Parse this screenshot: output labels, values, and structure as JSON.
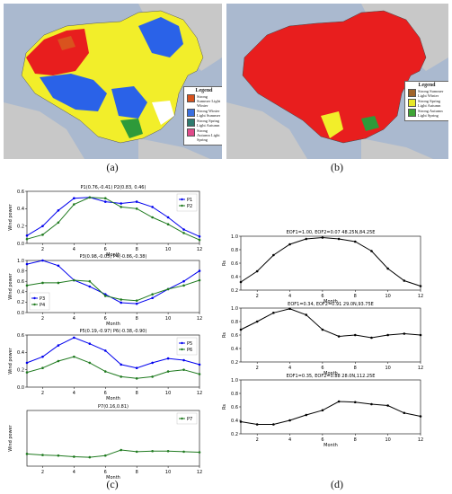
{
  "panels": {
    "a": {
      "label": "(a)"
    },
    "b": {
      "label": "(b)"
    },
    "c": {
      "label": "(c)"
    },
    "d": {
      "label": "(d)"
    }
  },
  "legend_a": {
    "title": "Legend",
    "items": [
      {
        "color": "#d9531e",
        "text": "Strong Summer Light Winter"
      },
      {
        "color": "#3a6fe0",
        "text": "Strong Winter Light Summer"
      },
      {
        "color": "#2e7b6e",
        "text": "Strong Spring Light Autumn"
      },
      {
        "color": "#e04a8a",
        "text": "Strong Autumn Light Spring"
      }
    ]
  },
  "legend_b": {
    "title": "Legend",
    "items": [
      {
        "color": "#a0642a",
        "text": "Strong Summer Light Winter"
      },
      {
        "color": "#e8e82a",
        "text": "Strong Spring Light Autumn"
      },
      {
        "color": "#3fa535",
        "text": "Strong Autumn Light Spring"
      }
    ]
  },
  "colors": {
    "map_bg": "#aab9cf",
    "china_red": "#e81e1e",
    "yellow": "#f2ee2a",
    "blue": "#2a62e8",
    "green": "#2e9a3a"
  },
  "chart_data": [
    {
      "type": "line",
      "panel": "c",
      "title": "P1(0.76,-0.41) P2(0.83, 0.46)",
      "xlabel": "Month",
      "ylabel": "Wind power",
      "xlim": [
        1,
        12
      ],
      "ylim": [
        0,
        0.6
      ],
      "xticks": [
        2,
        4,
        6,
        8,
        10,
        12
      ],
      "yticks": [
        0.0,
        0.2,
        0.4,
        0.6
      ],
      "ytick_labels": [
        "0.0",
        "0.2",
        "0.4",
        "0.6"
      ],
      "legend": "top-right",
      "x": [
        1,
        2,
        3,
        4,
        5,
        6,
        7,
        8,
        9,
        10,
        11,
        12
      ],
      "series": [
        {
          "name": "P1",
          "color": "#0000ee",
          "values": [
            0.09,
            0.2,
            0.38,
            0.52,
            0.53,
            0.48,
            0.46,
            0.48,
            0.42,
            0.3,
            0.16,
            0.08
          ]
        },
        {
          "name": "P2",
          "color": "#1f7a1f",
          "values": [
            0.05,
            0.1,
            0.24,
            0.45,
            0.53,
            0.52,
            0.42,
            0.4,
            0.3,
            0.22,
            0.12,
            0.04
          ]
        }
      ]
    },
    {
      "type": "line",
      "panel": "c",
      "title": "P3(0.98,-0.05) P4(-0.86,-0.38)",
      "xlabel": "Month",
      "ylabel": "Wind power",
      "xlim": [
        1,
        12
      ],
      "ylim": [
        0,
        1.0
      ],
      "xticks": [
        2,
        4,
        6,
        8,
        10,
        12
      ],
      "yticks": [
        0.0,
        0.2,
        0.4,
        0.6,
        0.8,
        1.0
      ],
      "ytick_labels": [
        "0.0",
        "0.2",
        "0.4",
        "0.6",
        "0.8",
        "1.0"
      ],
      "legend": "bottom-left",
      "x": [
        1,
        2,
        3,
        4,
        5,
        6,
        7,
        8,
        9,
        10,
        11,
        12
      ],
      "series": [
        {
          "name": "P3",
          "color": "#0000ee",
          "values": [
            0.93,
            1.0,
            0.9,
            0.62,
            0.5,
            0.35,
            0.19,
            0.17,
            0.28,
            0.45,
            0.6,
            0.8
          ]
        },
        {
          "name": "P4",
          "color": "#1f7a1f",
          "values": [
            0.52,
            0.57,
            0.57,
            0.62,
            0.6,
            0.32,
            0.25,
            0.23,
            0.35,
            0.45,
            0.52,
            0.62
          ]
        }
      ]
    },
    {
      "type": "line",
      "panel": "c",
      "title": "P5(0.19,-0.97) P6(-0.38,-0.90)",
      "xlabel": "Month",
      "ylabel": "Wind power",
      "xlim": [
        1,
        12
      ],
      "ylim": [
        0,
        0.6
      ],
      "xticks": [
        2,
        4,
        6,
        8,
        10,
        12
      ],
      "yticks": [
        0.0,
        0.2,
        0.4,
        0.6
      ],
      "ytick_labels": [
        "0.0",
        "0.2",
        "0.4",
        "0.6"
      ],
      "legend": "top-right",
      "x": [
        1,
        2,
        3,
        4,
        5,
        6,
        7,
        8,
        9,
        10,
        11,
        12
      ],
      "series": [
        {
          "name": "P5",
          "color": "#0000ee",
          "values": [
            0.28,
            0.35,
            0.48,
            0.57,
            0.5,
            0.42,
            0.26,
            0.22,
            0.28,
            0.33,
            0.31,
            0.26
          ]
        },
        {
          "name": "P6",
          "color": "#1f7a1f",
          "values": [
            0.17,
            0.22,
            0.3,
            0.35,
            0.28,
            0.18,
            0.12,
            0.1,
            0.12,
            0.18,
            0.2,
            0.15
          ]
        }
      ]
    },
    {
      "type": "line",
      "panel": "c",
      "title": "P7(0.16,0.81)",
      "xlabel": "Month",
      "ylabel": "Wind power",
      "xlim": [
        1,
        12
      ],
      "ylim": [
        0,
        1.0
      ],
      "xticks": [
        2,
        4,
        6,
        8,
        10,
        12
      ],
      "yticks": [],
      "ytick_labels": [],
      "legend": "top-right",
      "x": [
        1,
        2,
        3,
        4,
        5,
        6,
        7,
        8,
        9,
        10,
        11,
        12
      ],
      "series": [
        {
          "name": "P7",
          "color": "#1f7a1f",
          "values": [
            0.22,
            0.2,
            0.19,
            0.17,
            0.16,
            0.19,
            0.29,
            0.26,
            0.27,
            0.27,
            0.26,
            0.25
          ]
        }
      ]
    },
    {
      "type": "line",
      "panel": "d",
      "title": "EOF1=1.00, EOF2=0.07 48.25N,84.25E",
      "xlabel": "Month",
      "ylabel": "Rs",
      "xlim": [
        1,
        12
      ],
      "ylim": [
        0.2,
        1.0
      ],
      "xticks": [
        2,
        4,
        6,
        8,
        10,
        12
      ],
      "yticks": [
        0.2,
        0.4,
        0.6,
        0.8,
        1.0
      ],
      "ytick_labels": [
        "0.2",
        "0.4",
        "0.6",
        "0.8",
        "1.0"
      ],
      "x": [
        1,
        2,
        3,
        4,
        5,
        6,
        7,
        8,
        9,
        10,
        11,
        12
      ],
      "series": [
        {
          "color": "#000000",
          "values": [
            0.32,
            0.48,
            0.72,
            0.88,
            0.96,
            0.98,
            0.96,
            0.92,
            0.78,
            0.52,
            0.34,
            0.26
          ]
        }
      ]
    },
    {
      "type": "line",
      "panel": "d",
      "title": "EOF1=0.34, EOF2=0.91 29.0N,93.75E",
      "xlabel": "Month",
      "ylabel": "Rs",
      "xlim": [
        1,
        12
      ],
      "ylim": [
        0.2,
        1.0
      ],
      "xticks": [
        2,
        4,
        6,
        8,
        10,
        12
      ],
      "yticks": [
        0.2,
        0.4,
        0.6,
        0.8,
        1.0
      ],
      "ytick_labels": [
        "0.2",
        "0.4",
        "0.6",
        "0.8",
        "1.0"
      ],
      "x": [
        1,
        2,
        3,
        4,
        5,
        6,
        7,
        8,
        9,
        10,
        11,
        12
      ],
      "series": [
        {
          "color": "#000000",
          "values": [
            0.68,
            0.8,
            0.93,
            0.99,
            0.9,
            0.68,
            0.58,
            0.6,
            0.56,
            0.6,
            0.62,
            0.6
          ]
        }
      ]
    },
    {
      "type": "line",
      "panel": "d",
      "title": "EOF1=0.35, EOF2=0.88 28.0N,112.25E",
      "xlabel": "Month",
      "ylabel": "Rs",
      "xlim": [
        1,
        12
      ],
      "ylim": [
        0.2,
        1.0
      ],
      "xticks": [
        2,
        4,
        6,
        8,
        10,
        12
      ],
      "yticks": [
        0.2,
        0.4,
        0.6,
        0.8,
        1.0
      ],
      "ytick_labels": [
        "0.2",
        "0.4",
        "0.6",
        "0.8",
        "1.0"
      ],
      "x": [
        1,
        2,
        3,
        4,
        5,
        6,
        7,
        8,
        9,
        10,
        11,
        12
      ],
      "series": [
        {
          "color": "#000000",
          "values": [
            0.38,
            0.34,
            0.34,
            0.4,
            0.48,
            0.55,
            0.68,
            0.67,
            0.64,
            0.62,
            0.51,
            0.46
          ]
        }
      ]
    }
  ]
}
